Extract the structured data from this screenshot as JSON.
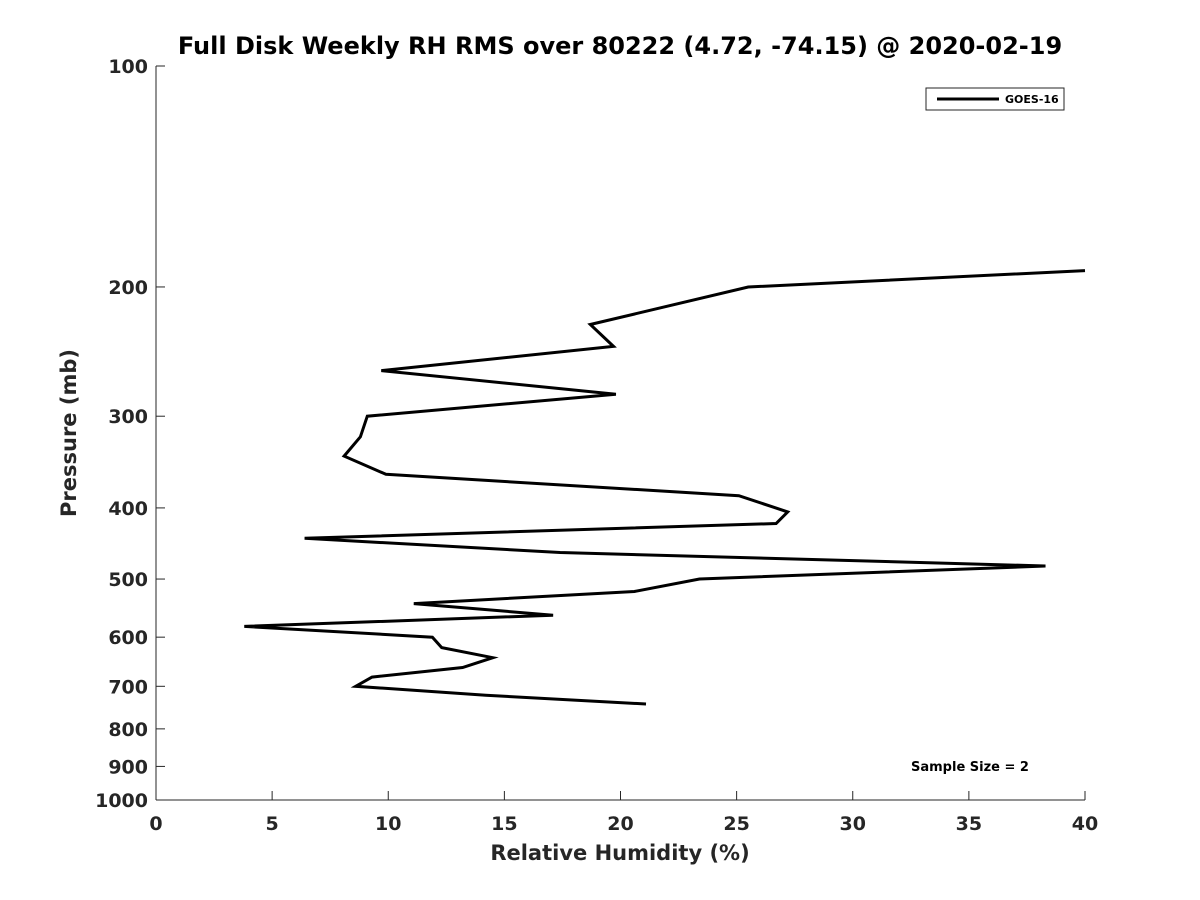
{
  "chart_data": {
    "type": "line",
    "title": "Full Disk Weekly RH RMS over 80222 (4.72, -74.15) @ 2020-02-19",
    "xlabel": "Relative Humidity (%)",
    "ylabel": "Pressure (mb)",
    "xlim": [
      0,
      40
    ],
    "ylim": [
      1000,
      100
    ],
    "yscale": "log",
    "xticks": [
      0,
      5,
      10,
      15,
      20,
      25,
      30,
      35,
      40
    ],
    "yticks": [
      100,
      200,
      300,
      400,
      500,
      600,
      700,
      800,
      900,
      1000
    ],
    "grid": false,
    "legend_position": "top-right",
    "annotation": "Sample Size = 2",
    "series": [
      {
        "name": "GOES-16",
        "color": "#000000",
        "points": [
          {
            "x": 40.0,
            "y": 190
          },
          {
            "x": 25.5,
            "y": 200
          },
          {
            "x": 18.7,
            "y": 225
          },
          {
            "x": 19.7,
            "y": 241
          },
          {
            "x": 9.7,
            "y": 260
          },
          {
            "x": 19.8,
            "y": 280
          },
          {
            "x": 9.1,
            "y": 300
          },
          {
            "x": 8.8,
            "y": 320
          },
          {
            "x": 8.1,
            "y": 340
          },
          {
            "x": 9.9,
            "y": 360
          },
          {
            "x": 25.1,
            "y": 385
          },
          {
            "x": 27.2,
            "y": 405
          },
          {
            "x": 26.7,
            "y": 420
          },
          {
            "x": 6.4,
            "y": 440
          },
          {
            "x": 17.4,
            "y": 460
          },
          {
            "x": 38.3,
            "y": 480
          },
          {
            "x": 23.4,
            "y": 500
          },
          {
            "x": 20.6,
            "y": 520
          },
          {
            "x": 11.1,
            "y": 540
          },
          {
            "x": 17.1,
            "y": 560
          },
          {
            "x": 3.8,
            "y": 580
          },
          {
            "x": 11.9,
            "y": 600
          },
          {
            "x": 12.3,
            "y": 620
          },
          {
            "x": 14.5,
            "y": 640
          },
          {
            "x": 13.2,
            "y": 660
          },
          {
            "x": 9.3,
            "y": 680
          },
          {
            "x": 8.6,
            "y": 700
          },
          {
            "x": 14.2,
            "y": 720
          },
          {
            "x": 21.1,
            "y": 740
          }
        ]
      }
    ]
  }
}
